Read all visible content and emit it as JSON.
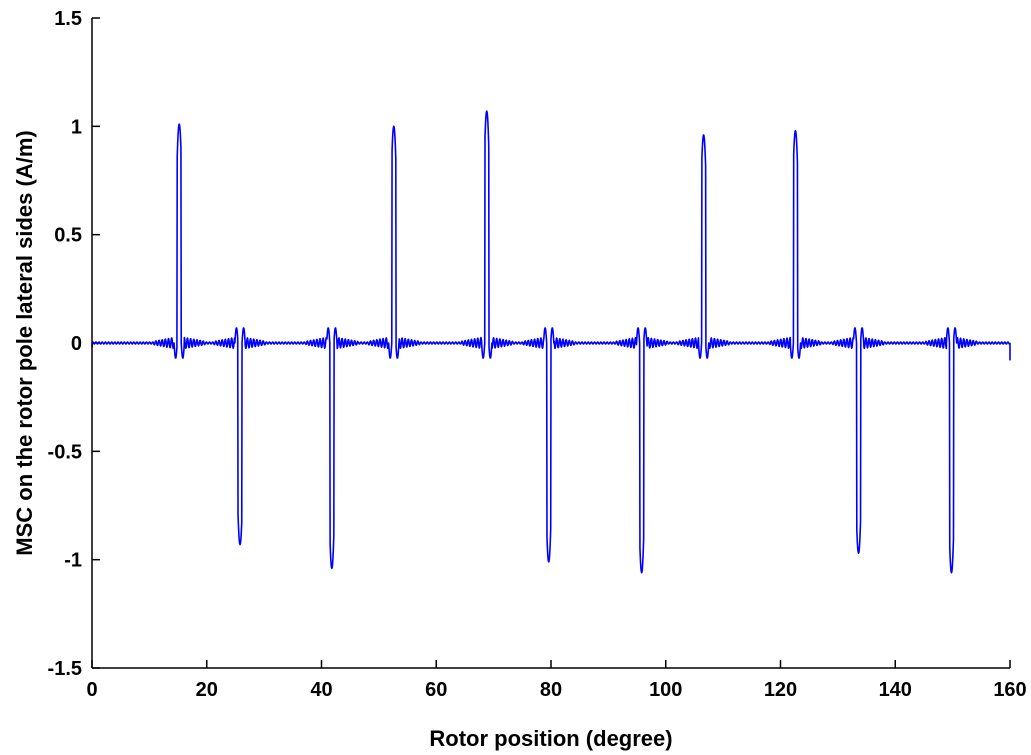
{
  "chart_data": {
    "type": "line",
    "title": "",
    "xlabel": "Rotor position (degree)",
    "ylabel": "MSC on the rotor pole lateral sides (A/m)",
    "xlim": [
      0,
      160
    ],
    "ylim": [
      -1.5,
      1.5
    ],
    "xticks": [
      0,
      20,
      40,
      60,
      80,
      100,
      120,
      140,
      160
    ],
    "xtick_labels": [
      "0",
      "20",
      "40",
      "60",
      "80",
      "100",
      "120",
      "140",
      "160"
    ],
    "yticks": [
      -1.5,
      -1,
      -0.5,
      0,
      0.5,
      1,
      1.5
    ],
    "ytick_labels": [
      "-1.5",
      "-1",
      "-0.5",
      "0",
      "0.5",
      "1",
      "1.5"
    ],
    "grid": false,
    "line_color": "#0000ff",
    "series": [
      {
        "name": "",
        "peaks": [
          {
            "x": 15.2,
            "y": 1.01
          },
          {
            "x": 25.8,
            "y": -0.93
          },
          {
            "x": 41.8,
            "y": -1.04
          },
          {
            "x": 52.6,
            "y": 1.0
          },
          {
            "x": 68.8,
            "y": 1.07
          },
          {
            "x": 79.6,
            "y": -1.01
          },
          {
            "x": 95.8,
            "y": -1.06
          },
          {
            "x": 106.6,
            "y": 0.96
          },
          {
            "x": 122.6,
            "y": 0.98
          },
          {
            "x": 133.6,
            "y": -0.97
          },
          {
            "x": 149.8,
            "y": -1.06
          }
        ],
        "ripple_amplitude": 0.03,
        "start": {
          "x": 0,
          "y": -0.02
        },
        "end": {
          "x": 160,
          "y": -0.08
        }
      }
    ]
  }
}
